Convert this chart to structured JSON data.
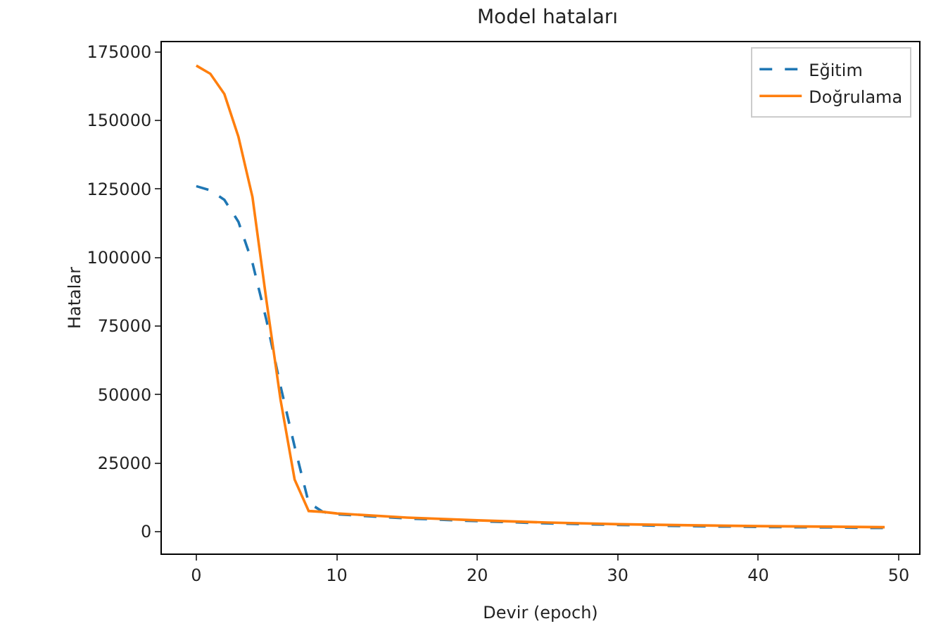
{
  "chart_data": {
    "type": "line",
    "title": "Model hataları",
    "xlabel": "Devir (epoch)",
    "ylabel": "Hatalar",
    "xlim": [
      -2.45,
      51.45
    ],
    "xticks": [
      0,
      10,
      20,
      30,
      40,
      50
    ],
    "ylim": [
      -8000,
      178500
    ],
    "yticks": [
      0,
      25000,
      50000,
      75000,
      100000,
      125000,
      150000,
      175000
    ],
    "grid": false,
    "legend": "top right",
    "marker": "none",
    "series": [
      {
        "name": "Eğitim",
        "color": "#1f77b4",
        "line_style": "dashed",
        "x": [
          0,
          1,
          2,
          3,
          4,
          5,
          6,
          7,
          8,
          9,
          10,
          15,
          20,
          25,
          30,
          35,
          40,
          45,
          49
        ],
        "values": [
          126000,
          124500,
          121000,
          113000,
          98000,
          77000,
          53000,
          31000,
          10500,
          7200,
          6300,
          4800,
          3800,
          3000,
          2400,
          2000,
          1700,
          1500,
          1300
        ]
      },
      {
        "name": "Doğrulama",
        "color": "#ff7f0e",
        "line_style": "solid",
        "x": [
          0,
          1,
          2,
          3,
          4,
          5,
          6,
          7,
          8,
          9,
          10,
          15,
          20,
          25,
          30,
          35,
          40,
          45,
          49
        ],
        "values": [
          170000,
          167000,
          159600,
          144000,
          122000,
          84000,
          48000,
          19000,
          7500,
          7200,
          6600,
          5100,
          4100,
          3300,
          2700,
          2300,
          2000,
          1800,
          1600
        ]
      }
    ]
  }
}
